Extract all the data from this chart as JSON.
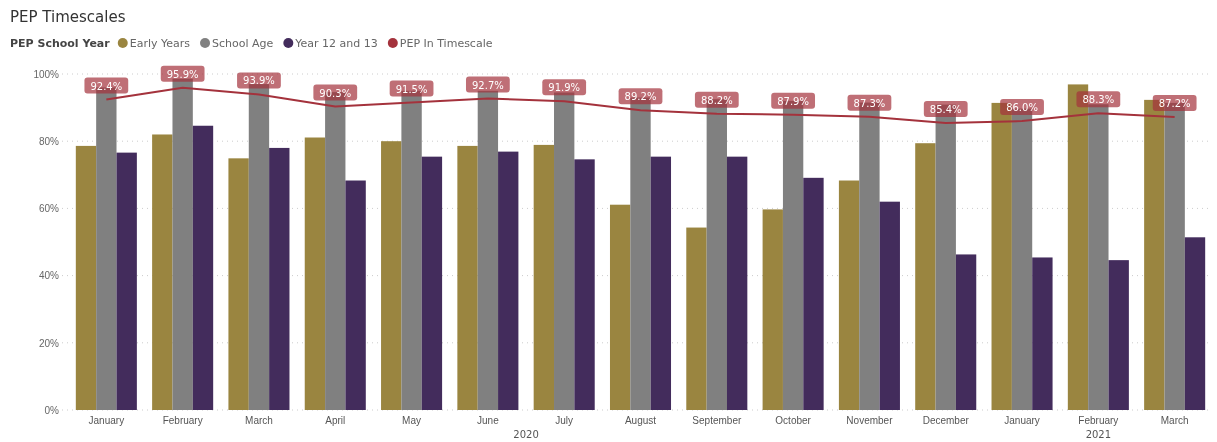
{
  "chart_data": {
    "type": "bar",
    "title": "PEP Timescales",
    "legend_title": "PEP School Year",
    "legend": "top left",
    "grid": "y",
    "categories": [
      "January",
      "February",
      "March",
      "April",
      "May",
      "June",
      "July",
      "August",
      "September",
      "October",
      "November",
      "December",
      "January",
      "February",
      "March"
    ],
    "ylim": [
      0,
      100
    ],
    "yticks": [
      {
        "value": 0,
        "label": "0%"
      },
      {
        "value": 20,
        "label": "20%"
      },
      {
        "value": 40,
        "label": "40%"
      },
      {
        "value": 60,
        "label": "60%"
      },
      {
        "value": 80,
        "label": "80%"
      },
      {
        "value": 100,
        "label": "100%"
      }
    ],
    "series": [
      {
        "name": "Early Years",
        "color": "#9a8540",
        "values": [
          78.6,
          82,
          74.9,
          81.1,
          80,
          78.6,
          78.9,
          61.1,
          54.3,
          59.7,
          68.3,
          79.4,
          91.4,
          96.9,
          92.3
        ]
      },
      {
        "name": "School Age",
        "color": "#808080",
        "values": [
          96,
          98.6,
          97,
          94.6,
          95,
          95,
          94.5,
          93,
          92.5,
          92,
          91.5,
          90.9,
          89.7,
          91,
          91.4
        ]
      },
      {
        "name": "Year 12 and 13",
        "color": "#432c5c",
        "values": [
          76.6,
          84.6,
          78,
          68.3,
          75.4,
          76.9,
          74.6,
          75.4,
          75.4,
          69.1,
          62,
          46.3,
          45.4,
          44.6,
          51.4
        ]
      },
      {
        "name": "PEP In Timescale",
        "type": "line",
        "color": "#a4323c",
        "values": [
          92.4,
          95.9,
          93.9,
          90.3,
          91.5,
          92.7,
          91.9,
          89.2,
          88.2,
          87.9,
          87.3,
          85.4,
          86.0,
          88.3,
          87.2
        ],
        "value_labels": [
          "92.4%",
          "95.9%",
          "93.9%",
          "90.3%",
          "91.5%",
          "92.7%",
          "91.9%",
          "89.2%",
          "88.2%",
          "87.9%",
          "87.3%",
          "85.4%",
          "86.0%",
          "88.3%",
          "87.2%"
        ]
      }
    ],
    "annotations": [
      "2020",
      "2021"
    ]
  }
}
